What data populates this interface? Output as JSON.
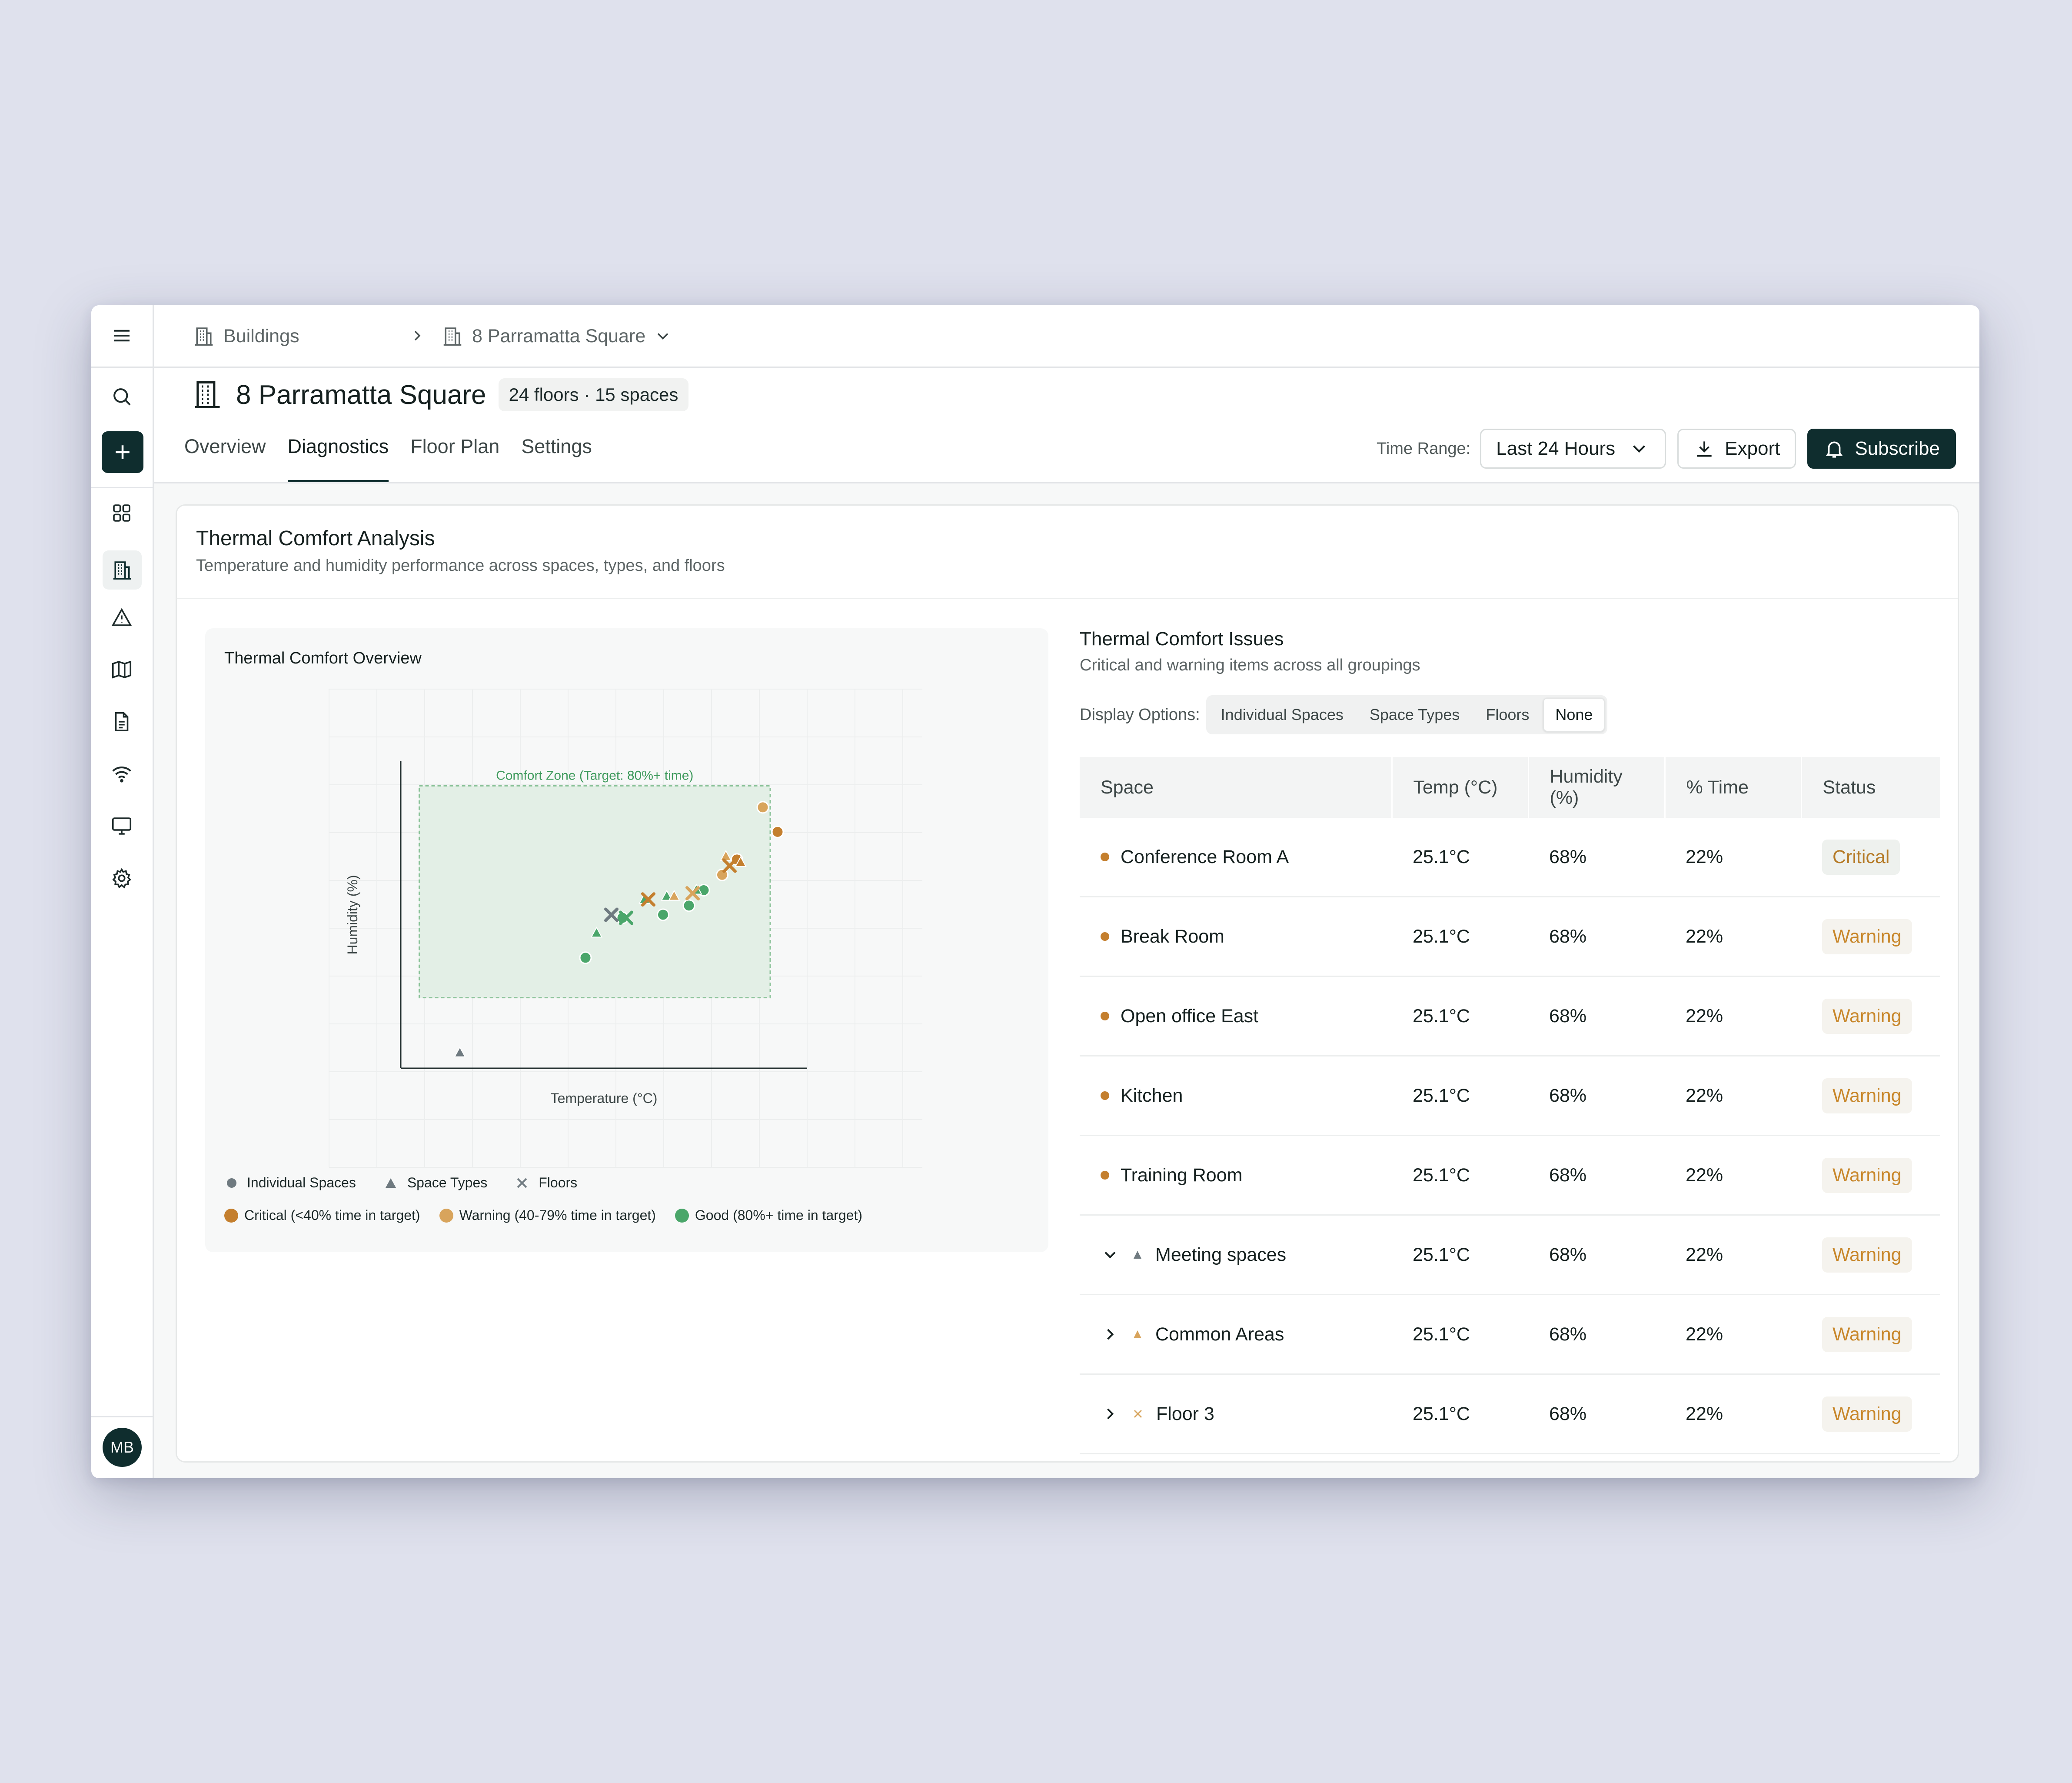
{
  "app": {
    "user_initials": "MB"
  },
  "breadcrumb": {
    "root": "Buildings",
    "current": "8 Parramatta Square"
  },
  "header": {
    "title": "8 Parramatta Square",
    "meta": "24 floors · 15 spaces",
    "tabs": [
      "Overview",
      "Diagnostics",
      "Floor Plan",
      "Settings"
    ],
    "active_tab": "Diagnostics",
    "time_range_label": "Time Range:",
    "time_range_value": "Last 24 Hours",
    "export_label": "Export",
    "subscribe_label": "Subscribe"
  },
  "card": {
    "title": "Thermal Comfort Analysis",
    "subtitle": "Temperature and humidity performance across spaces, types, and floors"
  },
  "chart": {
    "title": "Thermal Comfort Overview",
    "zone_label": "Comfort Zone (Target: 80%+ time)",
    "legend_shapes": [
      "Individual Spaces",
      "Space Types",
      "Floors"
    ],
    "legend_status": [
      "Critical (<40% time in target)",
      "Warning (40-79% time in target)",
      "Good (80%+ time in target)"
    ]
  },
  "chart_data": {
    "type": "scatter",
    "title": "Thermal Comfort Overview",
    "xlabel": "Temperature (°C)",
    "ylabel": "Humidity (%)",
    "annotation": "Comfort Zone (Target: 80%+ time)",
    "series": [
      {
        "name": "Individual Spaces",
        "marker": "circle",
        "points": [
          {
            "x": 0.5,
            "y": 0.36,
            "status": "good"
          },
          {
            "x": 0.6,
            "y": 0.49,
            "status": "good"
          },
          {
            "x": 0.71,
            "y": 0.5,
            "status": "good"
          },
          {
            "x": 0.78,
            "y": 0.53,
            "status": "good"
          },
          {
            "x": 0.82,
            "y": 0.58,
            "status": "good"
          },
          {
            "x": 0.87,
            "y": 0.63,
            "status": "warning"
          },
          {
            "x": 0.91,
            "y": 0.68,
            "status": "critical"
          },
          {
            "x": 0.98,
            "y": 0.85,
            "status": "warning"
          },
          {
            "x": 1.02,
            "y": 0.77,
            "status": "critical"
          }
        ]
      },
      {
        "name": "Space Types",
        "marker": "triangle",
        "points": [
          {
            "x": 0.16,
            "y": 0.05,
            "status": "neutral"
          },
          {
            "x": 0.53,
            "y": 0.44,
            "status": "good"
          },
          {
            "x": 0.66,
            "y": 0.55,
            "status": "good"
          },
          {
            "x": 0.72,
            "y": 0.56,
            "status": "good"
          },
          {
            "x": 0.74,
            "y": 0.56,
            "status": "warning"
          },
          {
            "x": 0.8,
            "y": 0.58,
            "status": "good"
          },
          {
            "x": 0.88,
            "y": 0.69,
            "status": "warning"
          },
          {
            "x": 0.92,
            "y": 0.67,
            "status": "critical"
          }
        ]
      },
      {
        "name": "Floors",
        "marker": "cross",
        "points": [
          {
            "x": 0.57,
            "y": 0.5,
            "status": "neutral"
          },
          {
            "x": 0.61,
            "y": 0.49,
            "status": "good"
          },
          {
            "x": 0.67,
            "y": 0.55,
            "status": "critical"
          },
          {
            "x": 0.79,
            "y": 0.57,
            "status": "warning"
          },
          {
            "x": 0.89,
            "y": 0.66,
            "status": "critical"
          }
        ]
      }
    ],
    "comfort_zone": {
      "x": [
        0.05,
        1.0
      ],
      "y": [
        0.23,
        0.92
      ]
    },
    "xlim": [
      0,
      1.1
    ],
    "ylim": [
      0,
      1.0
    ],
    "grid": true,
    "legend": "bottom"
  },
  "colors": {
    "critical": "#c47f2e",
    "warning": "#d8a45c",
    "good": "#4aa66a",
    "neutral": "#6f7a80",
    "zone_fill": "#e3efe6",
    "zone_stroke": "#8cc39a",
    "brand_dark": "#0f2d2e"
  },
  "issues": {
    "title": "Thermal Comfort Issues",
    "subtitle": "Critical and warning items across all groupings",
    "display_label": "Display Options:",
    "display_options": [
      "Individual Spaces",
      "Space Types",
      "Floors",
      "None"
    ],
    "display_selected": "None",
    "columns": [
      "Space",
      "Temp (°C)",
      "Humidity (%)",
      "% Time",
      "Status"
    ],
    "rows": [
      {
        "space": "Conference Room A",
        "kind": "space",
        "temp": "25.1°C",
        "humidity": "68%",
        "time": "22%",
        "status": "Critical"
      },
      {
        "space": "Break Room",
        "kind": "space",
        "temp": "25.1°C",
        "humidity": "68%",
        "time": "22%",
        "status": "Warning"
      },
      {
        "space": "Open office East",
        "kind": "space",
        "temp": "25.1°C",
        "humidity": "68%",
        "time": "22%",
        "status": "Warning"
      },
      {
        "space": "Kitchen",
        "kind": "space",
        "temp": "25.1°C",
        "humidity": "68%",
        "time": "22%",
        "status": "Warning"
      },
      {
        "space": "Training Room",
        "kind": "space",
        "temp": "25.1°C",
        "humidity": "68%",
        "time": "22%",
        "status": "Warning"
      },
      {
        "space": "Meeting spaces",
        "kind": "type",
        "expanded": true,
        "temp": "25.1°C",
        "humidity": "68%",
        "time": "22%",
        "status": "Warning"
      },
      {
        "space": "Common Areas",
        "kind": "type",
        "expanded": false,
        "temp": "25.1°C",
        "humidity": "68%",
        "time": "22%",
        "status": "Warning"
      },
      {
        "space": "Floor 3",
        "kind": "floor",
        "expanded": false,
        "temp": "25.1°C",
        "humidity": "68%",
        "time": "22%",
        "status": "Warning"
      }
    ]
  }
}
